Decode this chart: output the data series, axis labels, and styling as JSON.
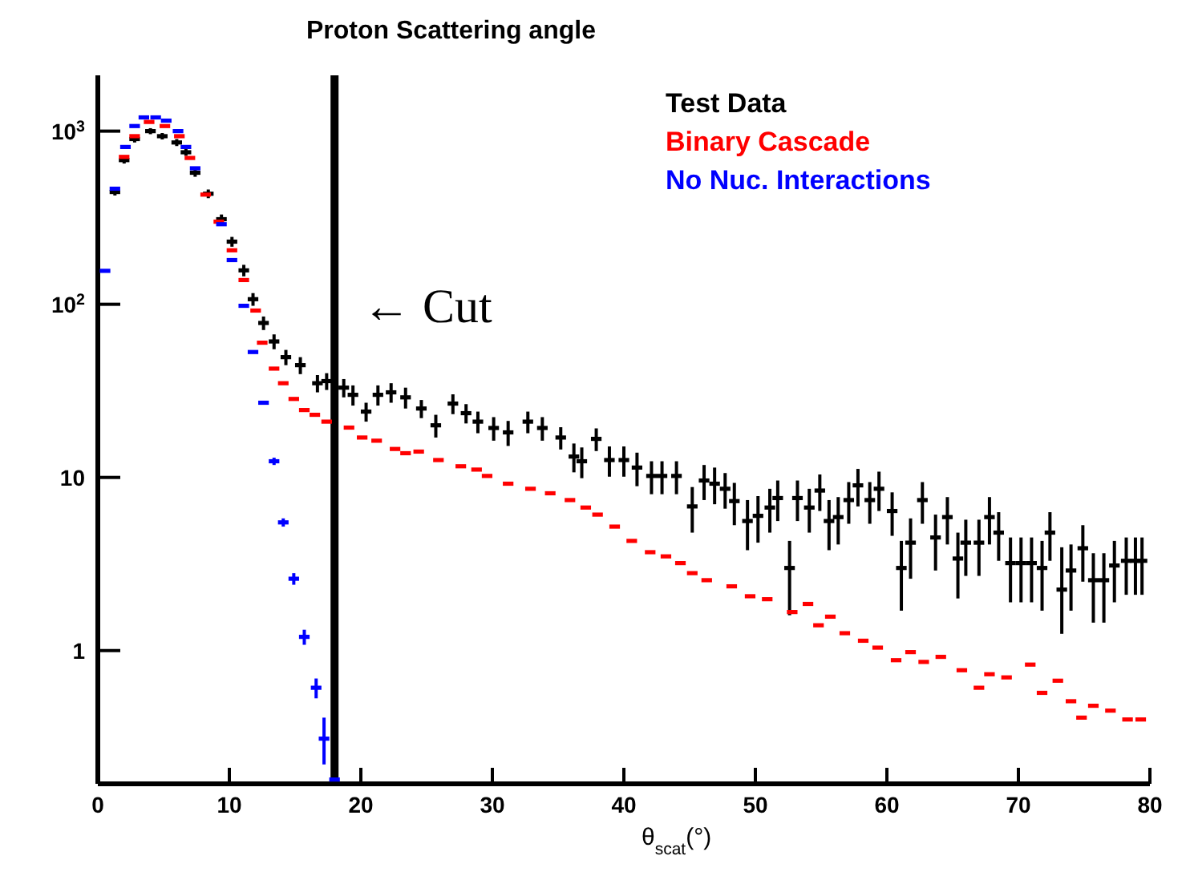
{
  "chart_data": {
    "type": "scatter",
    "title": "Proton Scattering angle",
    "xlabel": "θ$_{scat}$(°)",
    "log": "y",
    "xlim": [
      0,
      80
    ],
    "xticks": [
      0,
      10,
      20,
      30,
      40,
      50,
      60,
      70,
      80
    ],
    "ylim": [
      0.17,
      2100
    ],
    "yticks": [
      1,
      10,
      {
        "value": 100,
        "label": "10$^{2}$"
      },
      {
        "value": 1000,
        "label": "10$^{3}$"
      }
    ],
    "grid": false,
    "legend": "top right",
    "ref_lines": [
      {
        "axis": "x",
        "value": 18,
        "color": "#000000"
      }
    ],
    "annotations": [
      "← Cut"
    ],
    "series": [
      {
        "name": "Test Data",
        "color": "#000000",
        "x": [
          1.3,
          2.0,
          2.8,
          4.0,
          4.9,
          6.0,
          6.7,
          7.4,
          8.4,
          9.4,
          10.2,
          11.1,
          11.8,
          12.6,
          13.4,
          14.3,
          15.4,
          16.7,
          17.4,
          18.7,
          19.4,
          20.4,
          21.3,
          22.3,
          23.4,
          24.6,
          25.7,
          27.0,
          28.0,
          28.9,
          30.1,
          31.2,
          32.7,
          33.8,
          35.2,
          36.2,
          36.8,
          37.9,
          38.9,
          40.0,
          41.0,
          42.1,
          42.9,
          44.0,
          45.2,
          46.1,
          46.9,
          47.7,
          48.4,
          49.4,
          50.2,
          51.1,
          51.7,
          52.6,
          53.2,
          54.1,
          54.9,
          55.6,
          56.3,
          57.1,
          57.8,
          58.7,
          59.4,
          60.4,
          61.1,
          61.8,
          62.7,
          63.7,
          64.6,
          65.4,
          66.0,
          67.0,
          67.8,
          68.5,
          69.4,
          70.2,
          71.0,
          71.8,
          72.4,
          73.3,
          74.0,
          74.9,
          75.7,
          76.5,
          77.3,
          78.2,
          78.9,
          79.4
        ],
        "values": [
          445,
          680,
          900,
          1000,
          935,
          860,
          755,
          575,
          435,
          310,
          230,
          157,
          107,
          78,
          61,
          49.5,
          44.5,
          35,
          36,
          33,
          30,
          24,
          30,
          31,
          29,
          25,
          20,
          26.7,
          23.5,
          21,
          19.3,
          18.2,
          21,
          19.3,
          17,
          13.2,
          12.4,
          16.7,
          12.6,
          12.6,
          11.4,
          10.2,
          10.2,
          10.2,
          6.8,
          9.6,
          9.2,
          8.6,
          7.3,
          5.6,
          6.0,
          6.7,
          7.6,
          3.0,
          7.6,
          6.7,
          8.4,
          5.6,
          5.9,
          7.4,
          9.0,
          7.4,
          8.6,
          6.4,
          3.0,
          4.2,
          7.4,
          4.5,
          5.9,
          3.4,
          4.2,
          4.2,
          5.9,
          4.8,
          3.2,
          3.2,
          3.2,
          3.0,
          4.8,
          2.25,
          2.9,
          3.9,
          2.55,
          2.55,
          3.1,
          3.3,
          3.3,
          3.3
        ],
        "errors": [
          20,
          30,
          40,
          40,
          40,
          40,
          35,
          30,
          25,
          20,
          15,
          12,
          9,
          7,
          6,
          5,
          5,
          4,
          4,
          4,
          4,
          3,
          4,
          4,
          4,
          3,
          3,
          3.5,
          3,
          3,
          3,
          3,
          3,
          3,
          2.5,
          2.5,
          2.5,
          2.5,
          2.5,
          2.5,
          2.5,
          2.2,
          2.2,
          2.2,
          2,
          2.2,
          2.2,
          2,
          2,
          1.8,
          1.8,
          1.9,
          2,
          [
            1.6,
            4.3
          ],
          2,
          1.9,
          2,
          1.8,
          1.8,
          2,
          2.2,
          2,
          2.2,
          1.8,
          [
            1.7,
            4.3
          ],
          1.6,
          2,
          1.6,
          1.8,
          1.4,
          1.5,
          1.5,
          1.8,
          1.5,
          1.3,
          1.3,
          1.3,
          1.3,
          1.5,
          [
            1.25,
            3.95
          ],
          1.2,
          1.4,
          1.1,
          1.1,
          1.2,
          1.2,
          1.2,
          1.2
        ]
      },
      {
        "name": "Binary Cascade",
        "color": "#ff0000",
        "x": [
          2.0,
          2.8,
          3.9,
          5.1,
          6.2,
          7.0,
          8.2,
          9.2,
          10.2,
          11.1,
          12.0,
          12.5,
          13.4,
          14.1,
          14.9,
          15.7,
          16.5,
          17.4,
          19.1,
          20.1,
          21.2,
          22.6,
          23.4,
          24.4,
          25.9,
          27.6,
          28.8,
          29.6,
          31.2,
          32.9,
          34.4,
          35.9,
          37.1,
          38.0,
          39.3,
          40.6,
          42.0,
          43.2,
          44.3,
          45.2,
          46.3,
          48.2,
          49.6,
          50.9,
          52.8,
          54.0,
          54.8,
          55.7,
          56.8,
          58.2,
          59.3,
          60.7,
          61.8,
          62.8,
          64.1,
          65.7,
          67.0,
          67.8,
          69.1,
          70.9,
          71.8,
          73.0,
          74.0,
          74.8,
          75.7,
          77.0,
          78.3,
          79.3
        ],
        "values": [
          710,
          935,
          1130,
          1070,
          935,
          700,
          430,
          300,
          205,
          138,
          92,
          60,
          42.5,
          35,
          28.4,
          24.5,
          23,
          21,
          19.4,
          17,
          16.3,
          14.6,
          13.8,
          14.1,
          12.6,
          11.6,
          11.1,
          10.2,
          9.2,
          8.6,
          8.1,
          7.4,
          6.7,
          6.1,
          5.2,
          4.3,
          3.7,
          3.5,
          3.2,
          2.8,
          2.55,
          2.35,
          2.06,
          1.98,
          1.67,
          1.86,
          1.4,
          1.57,
          1.26,
          1.14,
          1.04,
          0.88,
          0.98,
          0.86,
          0.92,
          0.77,
          0.61,
          0.73,
          0.7,
          0.83,
          0.57,
          0.67,
          0.51,
          0.41,
          0.48,
          0.45,
          0.4,
          0.4
        ]
      },
      {
        "name": "No Nuc. Interactions",
        "color": "#0000ff",
        "x": [
          0.55,
          1.3,
          2.1,
          2.8,
          3.5,
          4.4,
          5.2,
          6.1,
          6.7,
          7.4,
          9.4,
          10.2,
          11.1,
          11.8,
          12.6,
          13.4,
          14.1,
          14.9,
          15.7,
          16.6,
          17.2,
          18.0
        ],
        "values": [
          156,
          465,
          810,
          1070,
          1200,
          1200,
          1150,
          1000,
          810,
          610,
          290,
          180,
          98,
          53,
          27,
          12.4,
          5.5,
          2.6,
          1.2,
          0.61,
          0.31,
          0.18
        ],
        "errors": [
          null,
          null,
          null,
          null,
          null,
          null,
          null,
          null,
          null,
          null,
          null,
          null,
          null,
          null,
          null,
          0.6,
          0.3,
          0.2,
          0.12,
          0.08,
          [
            0.22,
            0.41
          ],
          null
        ]
      }
    ]
  }
}
